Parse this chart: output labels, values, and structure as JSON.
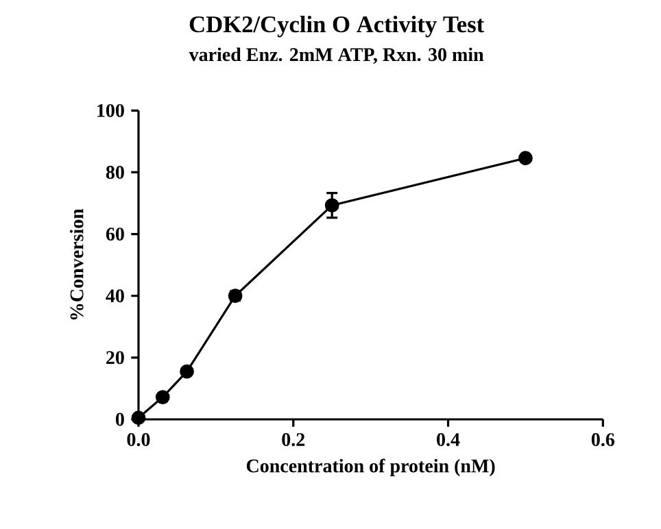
{
  "chart_data": {
    "type": "line",
    "title": "CDK2/Cyclin O Activity Test",
    "subtitle": "varied Enz. 2mM ATP, Rxn. 30 min",
    "xlabel": "Concentration of protein (nM)",
    "ylabel": "%Conversion",
    "x": [
      0,
      0.03125,
      0.0625,
      0.125,
      0.25,
      0.5
    ],
    "series": [
      {
        "color": "#000000",
        "values": [
          0.5,
          7.2,
          15.5,
          40,
          69.3,
          84.6
        ],
        "errors": [
          null,
          null,
          null,
          1.5,
          4,
          null
        ]
      }
    ],
    "xlim": [
      0,
      0.6
    ],
    "xticks": [
      {
        "value": 0,
        "label": "0.0"
      },
      0.2,
      0.4,
      0.6
    ],
    "ylim": [
      0,
      100
    ],
    "yticks": [
      0,
      20,
      40,
      60,
      80,
      100
    ],
    "marker": "circle",
    "line_style": "solid"
  }
}
